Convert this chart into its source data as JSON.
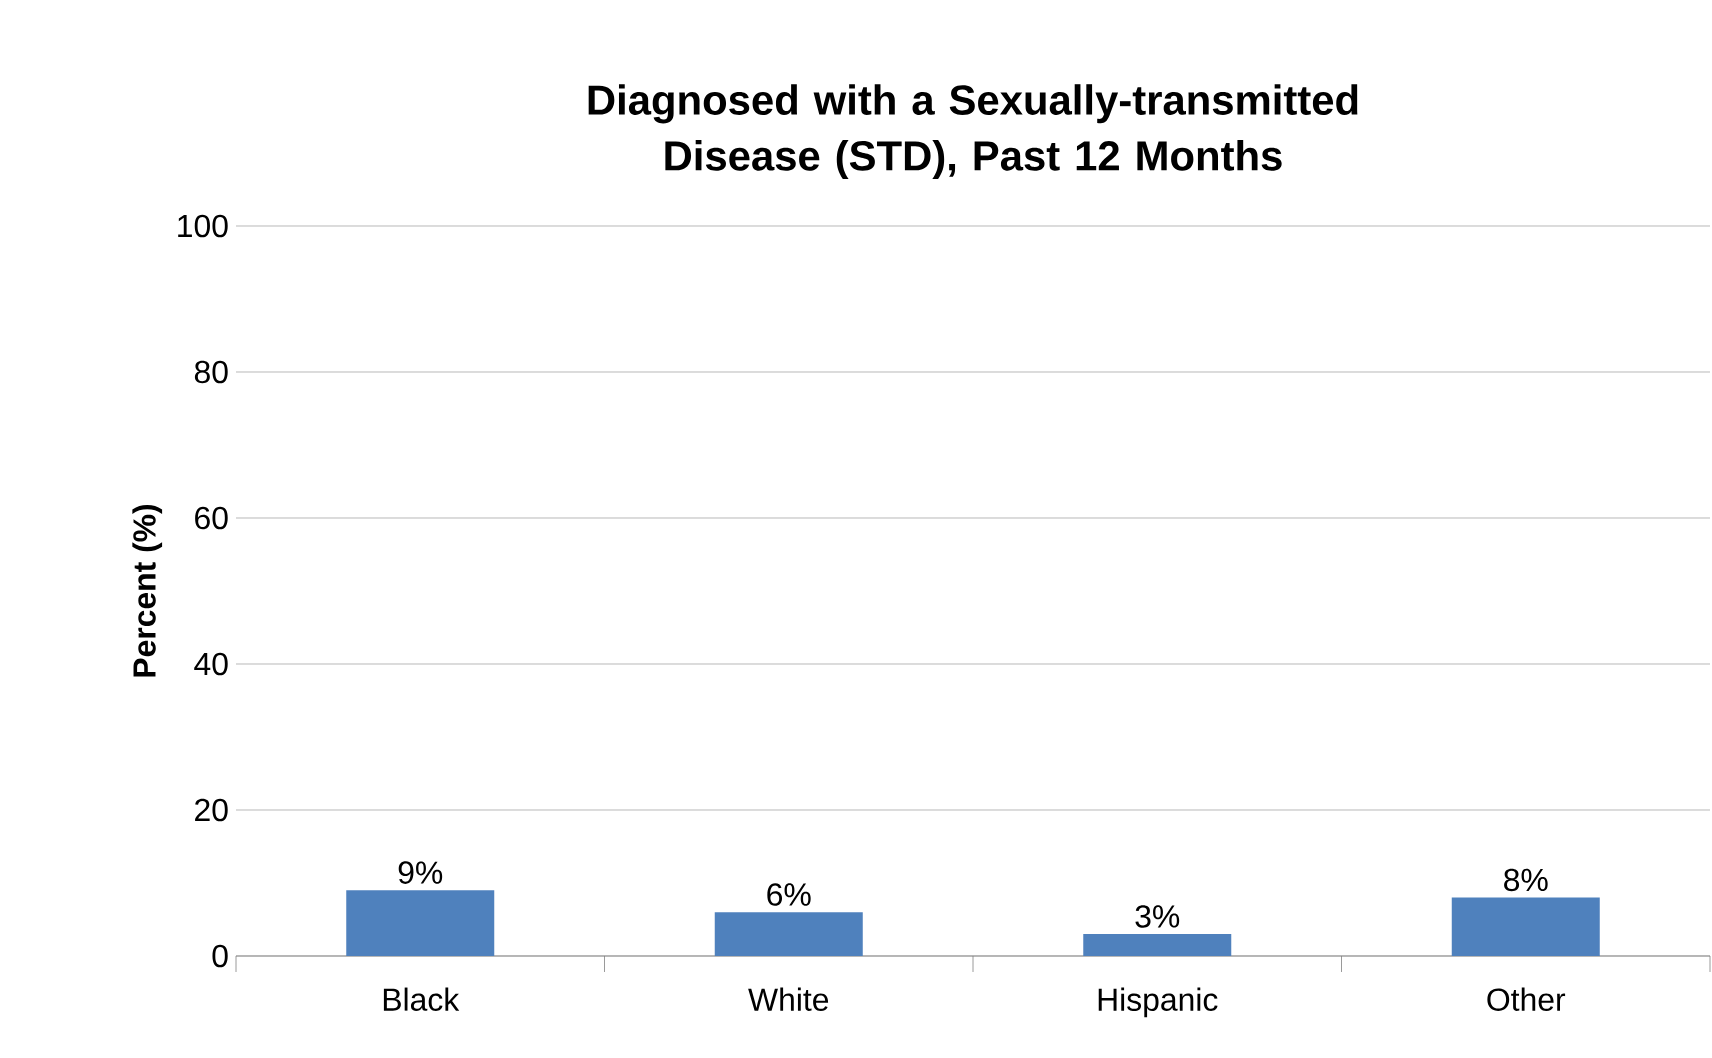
{
  "chart_data": {
    "type": "bar",
    "title": "Diagnosed with a Sexually-transmitted Disease (STD), Past 12 Months",
    "ylabel": "Percent (%)",
    "categories": [
      "Black",
      "White",
      "Hispanic",
      "Other"
    ],
    "values": [
      9,
      6,
      3,
      8
    ],
    "value_labels": [
      "9%",
      "6%",
      "3%",
      "8%"
    ],
    "color": "#4f81bd",
    "ylim": [
      0,
      100
    ],
    "yticks": [
      0,
      20,
      40,
      60,
      80,
      100
    ],
    "grid": "y"
  }
}
